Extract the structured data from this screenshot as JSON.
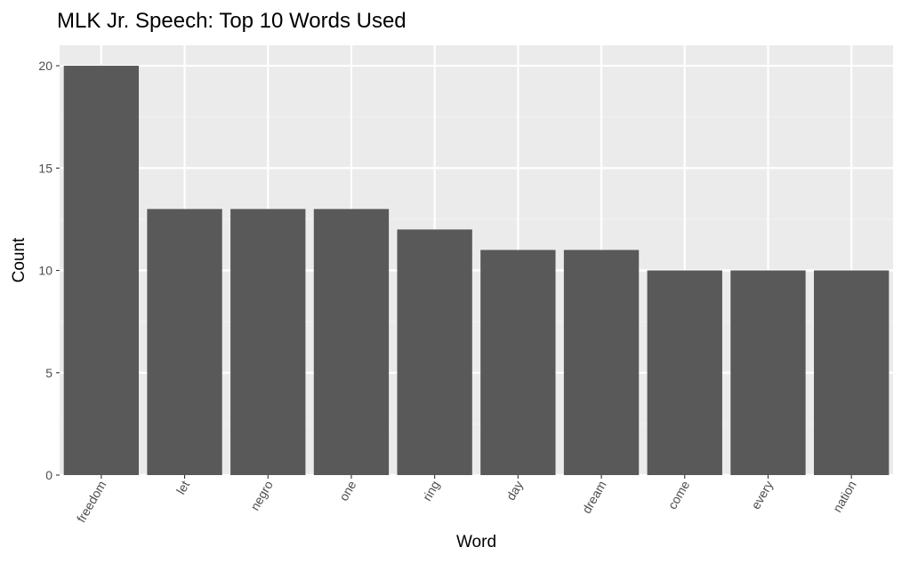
{
  "chart_data": {
    "type": "bar",
    "title": "MLK Jr. Speech: Top 10 Words Used",
    "xlabel": "Word",
    "ylabel": "Count",
    "categories": [
      "freedom",
      "let",
      "negro",
      "one",
      "ring",
      "day",
      "dream",
      "come",
      "every",
      "nation"
    ],
    "values": [
      20,
      13,
      13,
      13,
      12,
      11,
      11,
      10,
      10,
      10
    ],
    "ylim": [
      0,
      21
    ],
    "yticks": [
      0,
      5,
      10,
      15,
      20
    ],
    "grid": true,
    "legend": "none",
    "colors": {
      "bar": "#595959",
      "panel": "#ebebeb",
      "grid_major": "#ffffff",
      "grid_minor": "#f2f2f2",
      "tick_text": "#4d4d4d"
    }
  }
}
